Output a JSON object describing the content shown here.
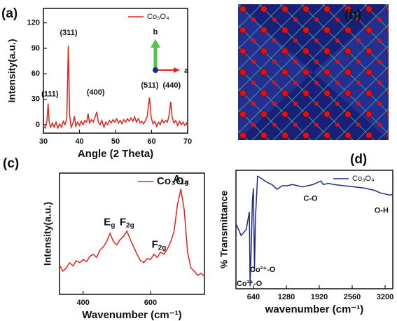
{
  "chart_data": [
    {
      "type": "line",
      "panel_label": "(a)",
      "xlabel": "Angle (2 Theta)",
      "ylabel": "Intensity(a.u.)",
      "xlim": [
        30,
        70
      ],
      "ylim": [
        -10,
        137
      ],
      "xticks": [
        30,
        40,
        50,
        60,
        70
      ],
      "yticks": [
        0,
        30,
        60,
        90,
        120
      ],
      "x": [
        30,
        30.5,
        31,
        31.3,
        31.6,
        32,
        32.5,
        33,
        33.5,
        34,
        34.5,
        35,
        35.5,
        36,
        36.5,
        36.9,
        37.3,
        37.7,
        38.2,
        38.6,
        39,
        39.5,
        40,
        40.5,
        41,
        41.5,
        42,
        42.4,
        42.8,
        43.3,
        43.8,
        44.4,
        44.8,
        45.2,
        45.7,
        46.2,
        46.8,
        47.3,
        47.8,
        48.3,
        48.8,
        49.3,
        49.8,
        50.3,
        50.8,
        51.3,
        51.8,
        52.3,
        52.8,
        53.3,
        53.8,
        54.3,
        54.8,
        55.3,
        55.8,
        56.3,
        56.8,
        57.3,
        57.8,
        58.3,
        58.8,
        59.4,
        59.9,
        60.4,
        60.9,
        61.4,
        61.9,
        62.4,
        62.9,
        63.4,
        63.9,
        64.4,
        64.9,
        65.3,
        65.7,
        66.2,
        66.7,
        67.2,
        67.7,
        68.2,
        68.7,
        69.2,
        69.7,
        70
      ],
      "series": [
        {
          "name": "Co₃O₄",
          "color": "#e8211d",
          "values": [
            -2,
            -4,
            5,
            25,
            3,
            -3,
            2,
            -3,
            3,
            -4,
            1,
            -3,
            4,
            0,
            8,
            93,
            10,
            -3,
            2,
            10,
            -2,
            3,
            -1,
            4,
            0,
            5,
            3,
            13,
            2,
            6,
            3,
            10,
            15,
            4,
            0,
            5,
            -3,
            3,
            0,
            5,
            2,
            6,
            3,
            7,
            2,
            5,
            1,
            6,
            3,
            7,
            4,
            8,
            4,
            9,
            3,
            7,
            2,
            4,
            1,
            5,
            10,
            32,
            8,
            1,
            4,
            -2,
            3,
            0,
            6,
            2,
            5,
            3,
            12,
            27,
            9,
            2,
            5,
            -1,
            4,
            0,
            3,
            -1,
            2,
            -2
          ]
        }
      ],
      "annotations": [
        {
          "x": 31.8,
          "y": 36,
          "text": "(111)"
        },
        {
          "x": 37,
          "y": 108,
          "text": "(311)"
        },
        {
          "x": 44.5,
          "y": 38,
          "text": "(400)"
        },
        {
          "x": 59.5,
          "y": 46,
          "text": "(511)"
        },
        {
          "x": 65.6,
          "y": 46,
          "text": "(440)"
        }
      ],
      "inset_labels": [
        "b",
        "a"
      ]
    },
    {
      "type": "structure",
      "panel_label": "(b)"
    },
    {
      "type": "line",
      "panel_label": "(c)",
      "xlabel": "Wavenumber (cm⁻¹)",
      "ylabel": "Intensity(a.u.)",
      "xlim": [
        330,
        760
      ],
      "ylim": [
        0,
        1.15
      ],
      "xticks": [
        400,
        600
      ],
      "x": [
        330,
        340,
        350,
        360,
        370,
        380,
        390,
        400,
        410,
        420,
        430,
        440,
        450,
        460,
        470,
        480,
        490,
        500,
        510,
        520,
        530,
        540,
        550,
        560,
        570,
        580,
        590,
        600,
        610,
        620,
        630,
        640,
        650,
        660,
        670,
        680,
        690,
        700,
        710,
        720,
        730,
        740,
        750,
        760
      ],
      "series": [
        {
          "name": "Co₃O₄",
          "color": "#e8211d",
          "values": [
            0.28,
            0.22,
            0.25,
            0.3,
            0.27,
            0.32,
            0.3,
            0.33,
            0.31,
            0.36,
            0.38,
            0.35,
            0.42,
            0.45,
            0.5,
            0.58,
            0.5,
            0.47,
            0.52,
            0.55,
            0.6,
            0.52,
            0.45,
            0.38,
            0.32,
            0.3,
            0.34,
            0.33,
            0.38,
            0.35,
            0.4,
            0.38,
            0.43,
            0.5,
            0.6,
            0.85,
            1.0,
            0.8,
            0.4,
            0.25,
            0.22,
            0.18,
            0.2,
            0.17
          ]
        }
      ],
      "annotations": [
        {
          "x": 478,
          "y": 0.68,
          "text": "E",
          "sub": "g"
        },
        {
          "x": 530,
          "y": 0.68,
          "text": "F",
          "sub": "2g"
        },
        {
          "x": 625,
          "y": 0.47,
          "text": "F",
          "sub": "2g"
        },
        {
          "x": 690,
          "y": 1.09,
          "text": "A",
          "sub": "1g"
        }
      ]
    },
    {
      "type": "line",
      "panel_label": "(d)",
      "xlabel": "wavenumber (cm⁻¹)",
      "ylabel": "% Transmittance",
      "xlim": [
        300,
        3350
      ],
      "ylim": [
        0,
        1
      ],
      "xticks": [
        640,
        1280,
        1920,
        2560,
        3200
      ],
      "x": [
        300,
        400,
        500,
        540,
        560,
        575,
        600,
        620,
        640,
        660,
        680,
        720,
        800,
        900,
        1000,
        1100,
        1200,
        1300,
        1400,
        1500,
        1600,
        1700,
        1800,
        1900,
        1950,
        2000,
        2100,
        2200,
        2400,
        2600,
        2800,
        3000,
        3100,
        3200,
        3300,
        3350
      ],
      "series": [
        {
          "name": "Co₃O₄",
          "color": "#1f2a8c",
          "values": [
            0.55,
            0.45,
            0.5,
            0.6,
            0.65,
            0.02,
            0.4,
            0.75,
            0.85,
            0.15,
            0.6,
            0.95,
            0.93,
            0.9,
            0.88,
            0.84,
            0.87,
            0.87,
            0.88,
            0.87,
            0.86,
            0.87,
            0.88,
            0.9,
            0.91,
            0.88,
            0.89,
            0.88,
            0.87,
            0.86,
            0.85,
            0.83,
            0.81,
            0.8,
            0.79,
            0.8
          ]
        }
      ],
      "annotations": [
        {
          "x": 1750,
          "y": 0.76,
          "text": "C-O"
        },
        {
          "x": 3130,
          "y": 0.66,
          "text": "O-H"
        },
        {
          "x": 820,
          "y": 0.16,
          "text": "Co²⁺-O"
        },
        {
          "x": 560,
          "y": 0.04,
          "text": "Co³⁺-O"
        }
      ]
    }
  ]
}
